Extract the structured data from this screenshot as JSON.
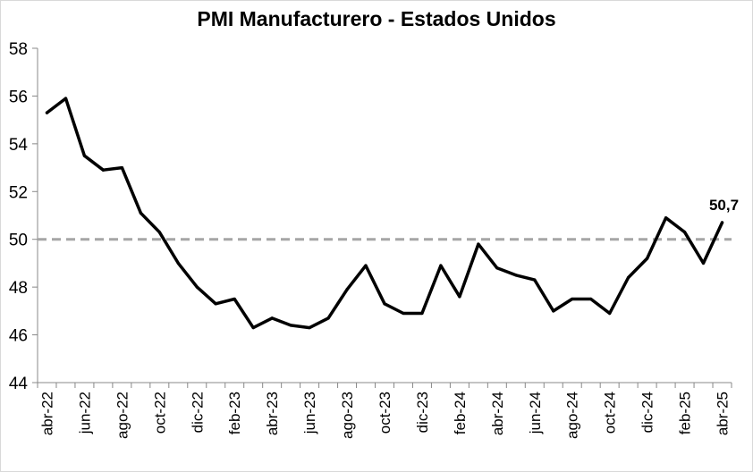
{
  "chart_data": {
    "type": "line",
    "title": "PMI Manufacturero - Estados Unidos",
    "xlabel": "",
    "ylabel": "",
    "ylim": [
      44,
      58
    ],
    "yticks": [
      44,
      46,
      48,
      50,
      52,
      54,
      56,
      58
    ],
    "grid": false,
    "reference_line": {
      "y": 50,
      "style": "dashed",
      "color": "#a6a6a6"
    },
    "x": [
      "abr-22",
      "may-22",
      "jun-22",
      "jul-22",
      "ago-22",
      "sep-22",
      "oct-22",
      "nov-22",
      "dic-22",
      "ene-23",
      "feb-23",
      "mar-23",
      "abr-23",
      "may-23",
      "jun-23",
      "jul-23",
      "ago-23",
      "sep-23",
      "oct-23",
      "nov-23",
      "dic-23",
      "ene-24",
      "feb-24",
      "mar-24",
      "abr-24",
      "may-24",
      "jun-24",
      "jul-24",
      "ago-24",
      "sep-24",
      "oct-24",
      "nov-24",
      "dic-24",
      "ene-25",
      "feb-25",
      "mar-25",
      "abr-25"
    ],
    "x_tick_labels": [
      "abr-22",
      "jun-22",
      "ago-22",
      "oct-22",
      "dic-22",
      "feb-23",
      "abr-23",
      "jun-23",
      "ago-23",
      "oct-23",
      "dic-23",
      "feb-24",
      "abr-24",
      "jun-24",
      "ago-24",
      "oct-24",
      "dic-24",
      "feb-25",
      "abr-25"
    ],
    "series": [
      {
        "values": [
          55.3,
          55.9,
          53.5,
          52.9,
          53.0,
          51.1,
          50.3,
          49.0,
          48.0,
          47.3,
          47.5,
          46.3,
          46.7,
          46.4,
          46.3,
          46.7,
          47.9,
          48.9,
          47.3,
          46.9,
          46.9,
          48.9,
          47.6,
          49.8,
          48.8,
          48.5,
          48.3,
          47.0,
          47.5,
          47.5,
          46.9,
          48.4,
          49.2,
          50.9,
          50.3,
          49.0,
          50.7
        ],
        "color": "#000000"
      }
    ],
    "data_labels": [
      {
        "index": 36,
        "text": "50,7"
      }
    ]
  }
}
